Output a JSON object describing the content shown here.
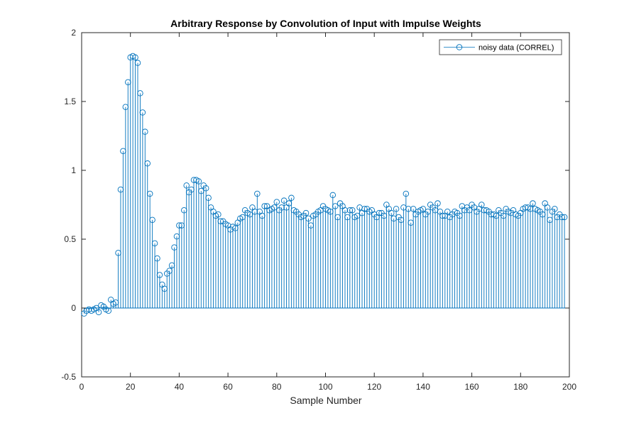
{
  "chart_data": {
    "type": "stem",
    "title": "Arbitrary Response by Convolution of Input with Impulse Weights",
    "xlabel": "Sample Number",
    "ylabel": "",
    "xlim": [
      0,
      200
    ],
    "ylim": [
      -0.5,
      2
    ],
    "xticks": [
      0,
      20,
      40,
      60,
      80,
      100,
      120,
      140,
      160,
      180,
      200
    ],
    "yticks": [
      -0.5,
      0,
      0.5,
      1,
      1.5,
      2
    ],
    "xtick_labels": [
      "0",
      "20",
      "40",
      "60",
      "80",
      "100",
      "120",
      "140",
      "160",
      "180",
      "200"
    ],
    "ytick_labels": [
      "-0.5",
      "0",
      "0.5",
      "1",
      "1.5",
      "2"
    ],
    "grid": false,
    "legend_position": "top-right",
    "colors": {
      "series": "#0072BD",
      "axes": "#262626"
    },
    "series": [
      {
        "name": "noisy data (CORREL)",
        "x_start": 1,
        "values": [
          -0.04,
          -0.02,
          -0.01,
          -0.02,
          -0.01,
          0.0,
          -0.03,
          0.02,
          0.01,
          -0.01,
          -0.02,
          0.06,
          0.03,
          0.04,
          0.4,
          0.86,
          1.14,
          1.46,
          1.64,
          1.82,
          1.83,
          1.82,
          1.78,
          1.56,
          1.42,
          1.28,
          1.05,
          0.83,
          0.64,
          0.47,
          0.36,
          0.24,
          0.17,
          0.14,
          0.25,
          0.27,
          0.31,
          0.44,
          0.52,
          0.6,
          0.6,
          0.71,
          0.89,
          0.84,
          0.86,
          0.93,
          0.93,
          0.92,
          0.85,
          0.89,
          0.87,
          0.8,
          0.73,
          0.7,
          0.67,
          0.68,
          0.63,
          0.63,
          0.61,
          0.6,
          0.57,
          0.59,
          0.58,
          0.62,
          0.65,
          0.66,
          0.71,
          0.69,
          0.68,
          0.73,
          0.7,
          0.83,
          0.7,
          0.67,
          0.74,
          0.74,
          0.71,
          0.72,
          0.73,
          0.77,
          0.71,
          0.73,
          0.78,
          0.73,
          0.76,
          0.8,
          0.71,
          0.7,
          0.68,
          0.66,
          0.67,
          0.69,
          0.65,
          0.6,
          0.67,
          0.68,
          0.7,
          0.71,
          0.74,
          0.72,
          0.71,
          0.7,
          0.82,
          0.74,
          0.66,
          0.76,
          0.74,
          0.71,
          0.66,
          0.71,
          0.71,
          0.66,
          0.67,
          0.73,
          0.69,
          0.72,
          0.72,
          0.7,
          0.71,
          0.68,
          0.66,
          0.69,
          0.69,
          0.67,
          0.75,
          0.72,
          0.69,
          0.65,
          0.72,
          0.66,
          0.64,
          0.73,
          0.83,
          0.72,
          0.62,
          0.72,
          0.68,
          0.7,
          0.71,
          0.72,
          0.68,
          0.7,
          0.75,
          0.73,
          0.71,
          0.76,
          0.7,
          0.67,
          0.67,
          0.7,
          0.66,
          0.68,
          0.7,
          0.69,
          0.67,
          0.74,
          0.71,
          0.73,
          0.71,
          0.75,
          0.73,
          0.7,
          0.72,
          0.75,
          0.71,
          0.71,
          0.7,
          0.68,
          0.68,
          0.67,
          0.71,
          0.69,
          0.67,
          0.72,
          0.7,
          0.69,
          0.71,
          0.68,
          0.67,
          0.69,
          0.72,
          0.73,
          0.73,
          0.72,
          0.76,
          0.72,
          0.71,
          0.7,
          0.68,
          0.76,
          0.73,
          0.64,
          0.7,
          0.72,
          0.66,
          0.68,
          0.66,
          0.66
        ]
      }
    ]
  }
}
